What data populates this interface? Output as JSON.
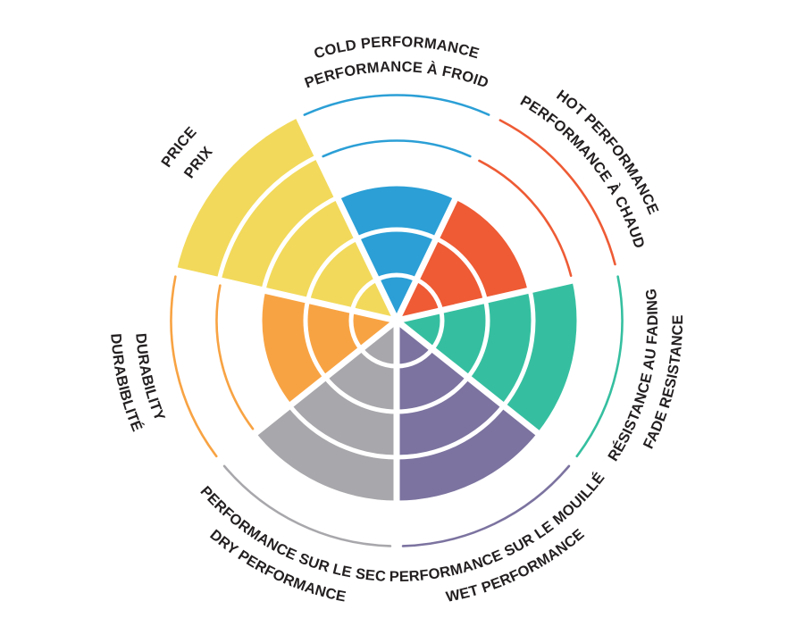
{
  "page": {
    "background": "#ffffff",
    "label_color": "#231F20"
  },
  "chart_data": {
    "type": "polar-sector-rating-wheel",
    "title": "",
    "scale_max": 5,
    "ring_count": 5,
    "direction": "clockwise-from-top",
    "first_sector_position": "top",
    "grid": "concentric-rings-with-white-gaps",
    "legend_position": "none",
    "categories": [
      {
        "id": "cold-performance",
        "label_outer": "COLD PERFORMANCE",
        "label_inner": "PERFORMANCE À FROID",
        "value": 3,
        "color": "#2B9FD6"
      },
      {
        "id": "hot-performance",
        "label_outer": "HOT PERFORMANCE",
        "label_inner": "PERFORMANCE À CHAUD",
        "value": 3,
        "color": "#EE5B35"
      },
      {
        "id": "fade-resistance",
        "label_outer": "FADE RESISTANCE",
        "label_inner": "RÉSISTANCE AU FADING",
        "value": 4,
        "color": "#35BFA0"
      },
      {
        "id": "wet-performance",
        "label_outer": "WET PERFORMANCE",
        "label_inner": "PERFORMANCE SUR LE MOUILLÉ",
        "value": 4,
        "color": "#7C73A0"
      },
      {
        "id": "dry-performance",
        "label_outer": "DRY PERFORMANCE",
        "label_inner": "PERFORMANCE SUR LE SEC",
        "value": 4,
        "color": "#A8A7AB"
      },
      {
        "id": "durability",
        "label_outer": "DURABIBLITÉ",
        "label_inner": "DURABILITY",
        "value": 3,
        "color": "#F8A343"
      },
      {
        "id": "price",
        "label_outer": "PRICE",
        "label_inner": "PRIX",
        "value": 5,
        "color": "#F2D95B"
      }
    ]
  }
}
